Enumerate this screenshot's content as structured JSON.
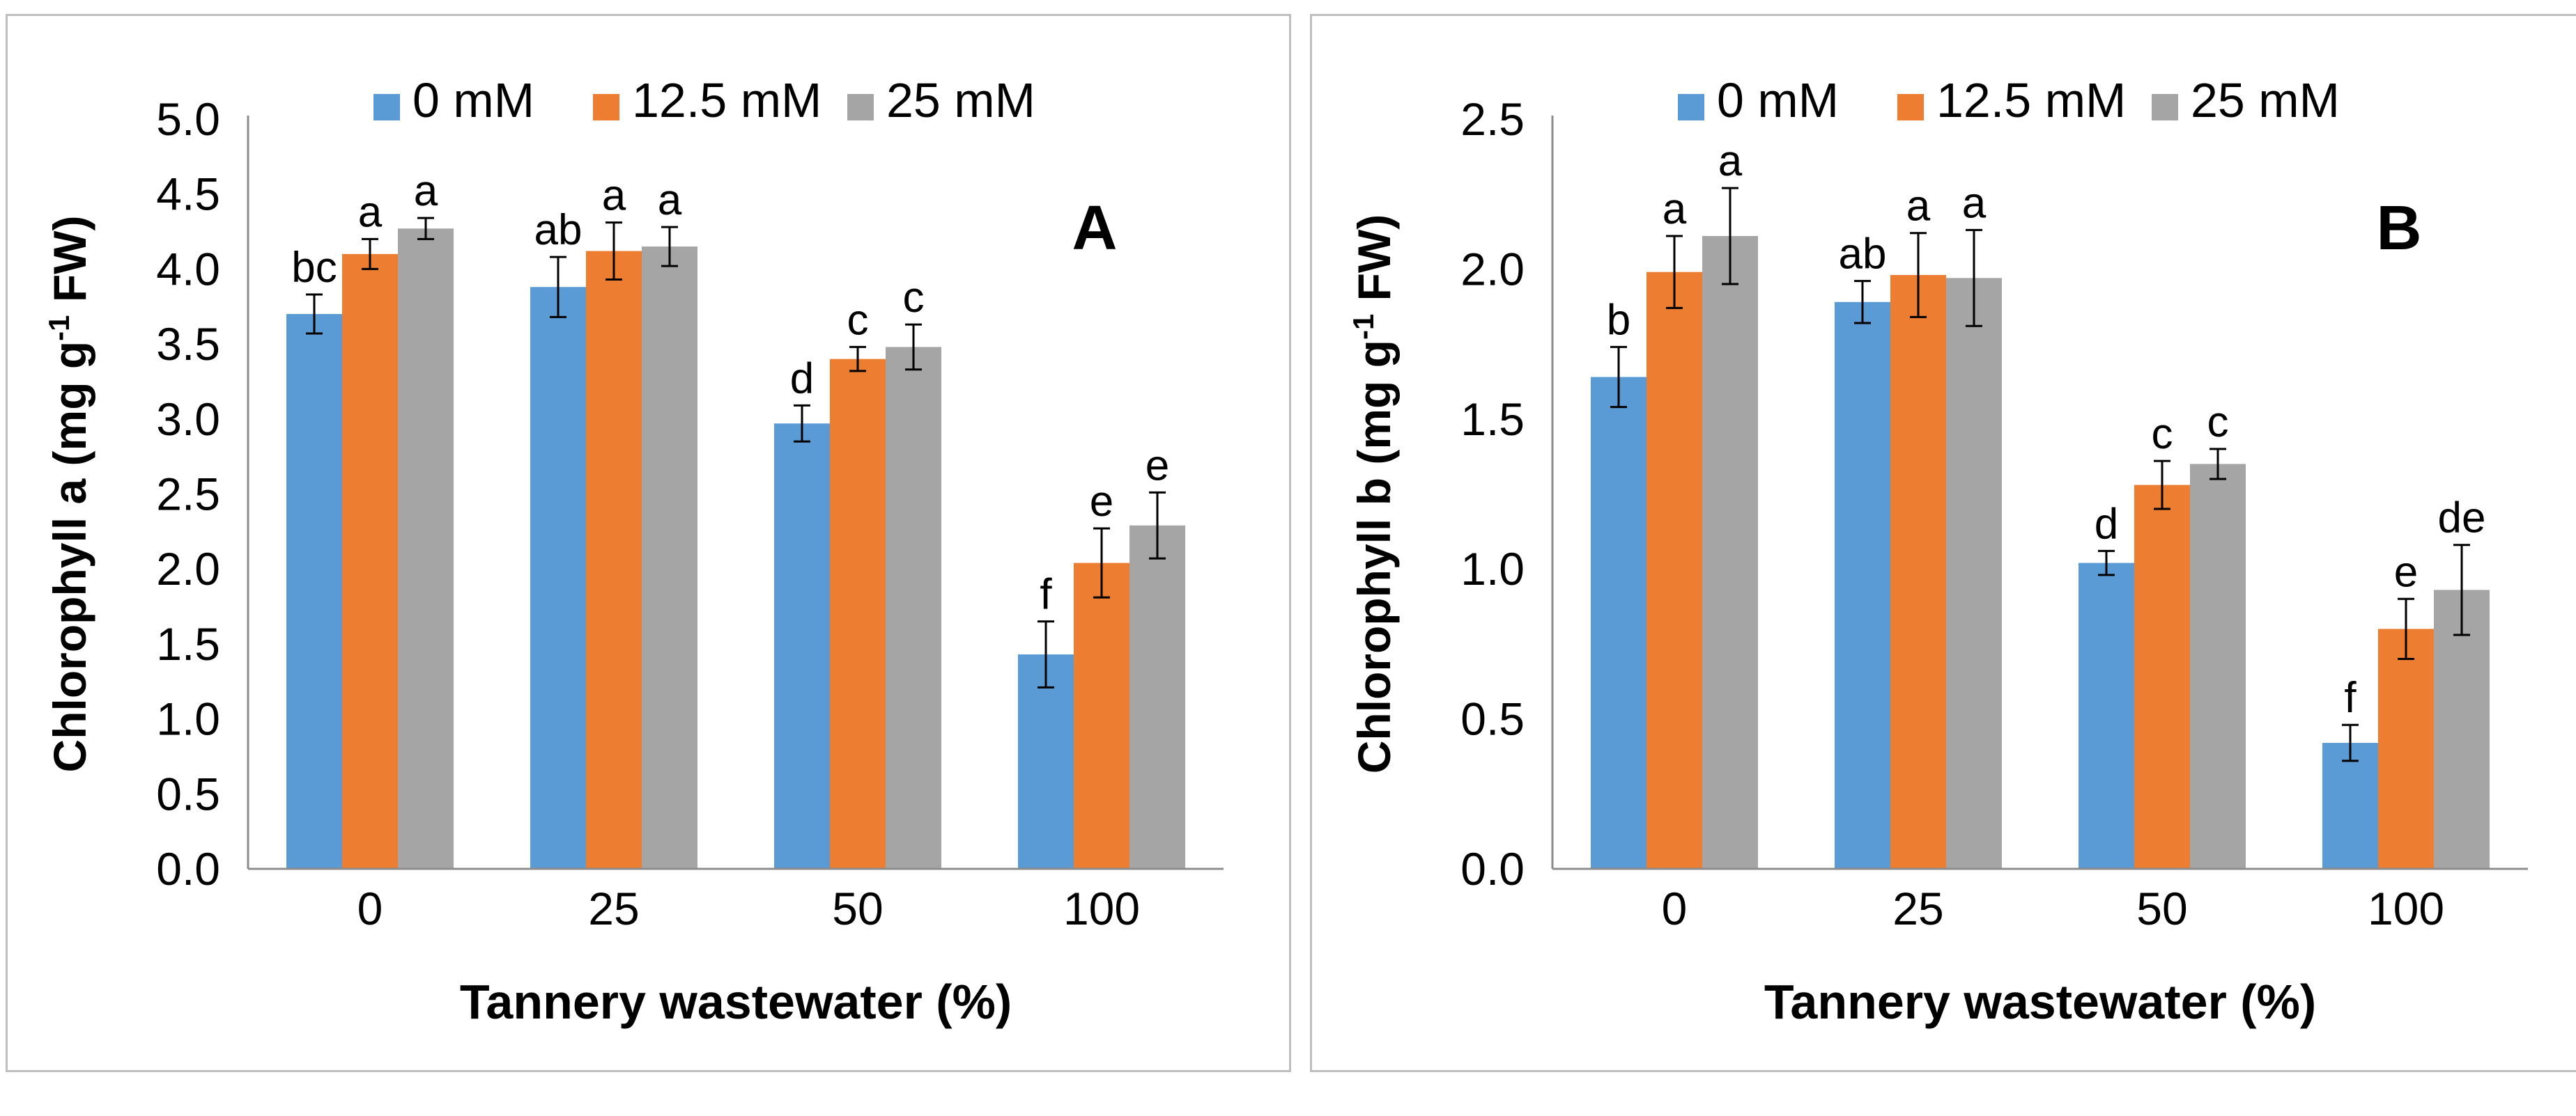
{
  "chart_data": [
    {
      "type": "bar",
      "panel_label": "A",
      "title": "",
      "xlabel": "Tannery wastewater (%)",
      "ylabel_main": "Chlorophyll a (mg g",
      "ylabel_sup": "-1",
      "ylabel_tail": " FW)",
      "categories": [
        "0",
        "25",
        "50",
        "100"
      ],
      "ylim": [
        0,
        5.0
      ],
      "yticks": [
        "0.0",
        "0.5",
        "1.0",
        "1.5",
        "2.0",
        "2.5",
        "3.0",
        "3.5",
        "4.0",
        "4.5",
        "5.0"
      ],
      "legend_position": "top",
      "series": [
        {
          "name": "0 mM",
          "color": "#5b9bd5",
          "values": [
            3.7,
            3.88,
            2.97,
            1.43
          ],
          "errors": [
            0.13,
            0.2,
            0.12,
            0.22
          ],
          "letters": [
            "bc",
            "ab",
            "d",
            "f"
          ]
        },
        {
          "name": "12.5 mM",
          "color": "#ed7d31",
          "values": [
            4.1,
            4.12,
            3.4,
            2.04
          ],
          "errors": [
            0.1,
            0.19,
            0.08,
            0.23
          ],
          "letters": [
            "a",
            "a",
            "c",
            "e"
          ]
        },
        {
          "name": "25 mM",
          "color": "#a5a5a5",
          "values": [
            4.27,
            4.15,
            3.48,
            2.29
          ],
          "errors": [
            0.07,
            0.13,
            0.15,
            0.22
          ],
          "letters": [
            "a",
            "a",
            "c",
            "e"
          ]
        }
      ]
    },
    {
      "type": "bar",
      "panel_label": "B",
      "title": "",
      "xlabel": "Tannery wastewater (%)",
      "ylabel_main": "Chlorophyll b (mg g",
      "ylabel_sup": "-1",
      "ylabel_tail": " FW)",
      "categories": [
        "0",
        "25",
        "50",
        "100"
      ],
      "ylim": [
        0,
        2.5
      ],
      "yticks": [
        "0.0",
        "0.5",
        "1.0",
        "1.5",
        "2.0",
        "2.5"
      ],
      "legend_position": "top",
      "series": [
        {
          "name": "0 mM",
          "color": "#5b9bd5",
          "values": [
            1.64,
            1.89,
            1.02,
            0.42
          ],
          "errors": [
            0.1,
            0.07,
            0.04,
            0.06
          ],
          "letters": [
            "b",
            "ab",
            "d",
            "f"
          ]
        },
        {
          "name": "12.5 mM",
          "color": "#ed7d31",
          "values": [
            1.99,
            1.98,
            1.28,
            0.8
          ],
          "errors": [
            0.12,
            0.14,
            0.08,
            0.1
          ],
          "letters": [
            "a",
            "a",
            "c",
            "e"
          ]
        },
        {
          "name": "25 mM",
          "color": "#a5a5a5",
          "values": [
            2.11,
            1.97,
            1.35,
            0.93
          ],
          "errors": [
            0.16,
            0.16,
            0.05,
            0.15
          ],
          "letters": [
            "a",
            "a",
            "c",
            "de"
          ]
        }
      ]
    }
  ]
}
